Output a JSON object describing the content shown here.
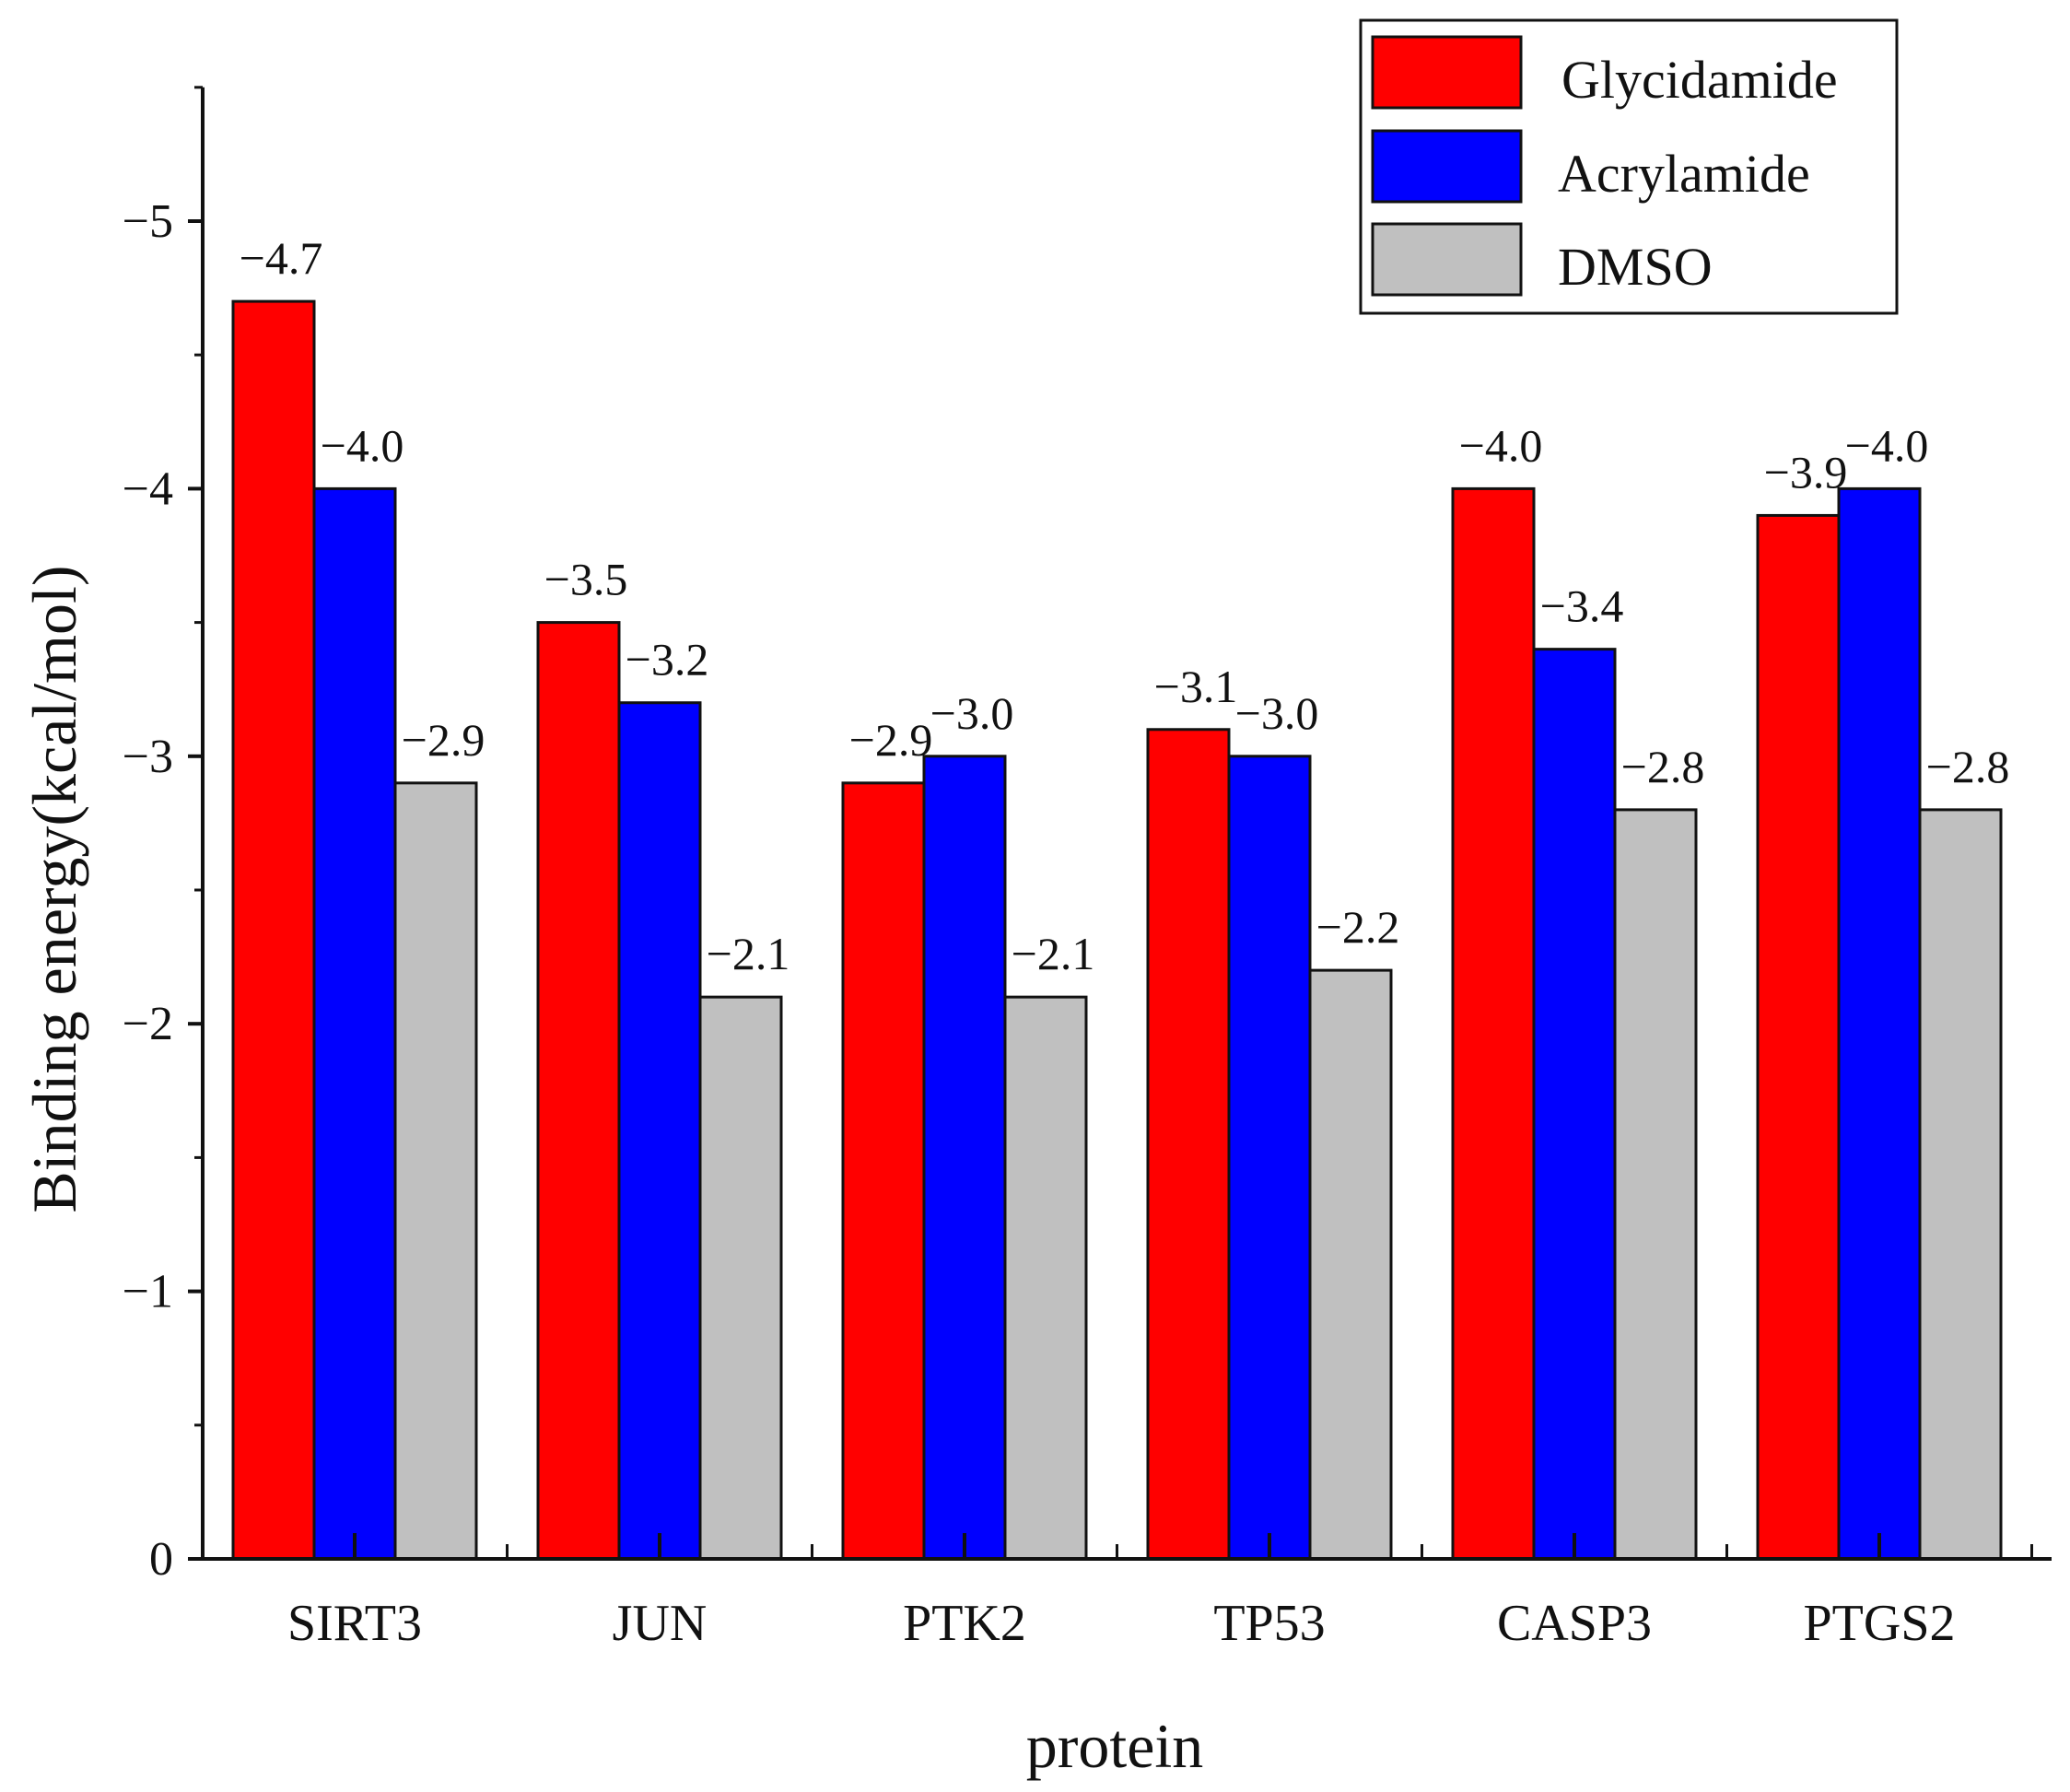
{
  "chart_data": {
    "type": "bar",
    "title": "",
    "xlabel": "protein",
    "ylabel": "Binding energy(kcal/mol)",
    "categories": [
      "SIRT3",
      "JUN",
      "PTK2",
      "TP53",
      "CASP3",
      "PTGS2"
    ],
    "series": [
      {
        "name": "Glycidamide",
        "color": "#ff0000",
        "values": [
          -4.7,
          -3.5,
          -2.9,
          -3.1,
          -4.0,
          -3.9
        ]
      },
      {
        "name": "Acrylamide",
        "color": "#0000ff",
        "values": [
          -4.0,
          -3.2,
          -3.0,
          -3.0,
          -3.4,
          -4.0
        ]
      },
      {
        "name": "DMSO",
        "color": "#c0c0c0",
        "values": [
          -2.9,
          -2.1,
          -2.1,
          -2.2,
          -2.8,
          -2.8
        ]
      }
    ],
    "data_labels": [
      [
        "−4.7",
        "−3.5",
        "−2.9",
        "−3.1",
        "−4.0",
        "−3.9"
      ],
      [
        "−4.0",
        "−3.2",
        "−3.0",
        "−3.0",
        "−3.4",
        "−4.0"
      ],
      [
        "−2.9",
        "−2.1",
        "−2.1",
        "−2.2",
        "−2.8",
        "−2.8"
      ]
    ],
    "y_ticks": [
      0,
      -1,
      -2,
      -3,
      -4,
      -5
    ],
    "y_tick_labels": [
      "0",
      "−1",
      "−2",
      "−3",
      "−4",
      "−5"
    ],
    "ylim": [
      0,
      -5.5
    ],
    "y_inverted": true,
    "grid": false,
    "legend_position": "top-right"
  }
}
